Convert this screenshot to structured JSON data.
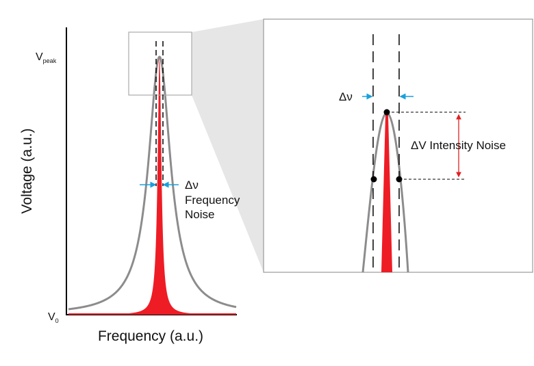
{
  "main_plot": {
    "y_axis_label": "Voltage (a.u.)",
    "x_axis_label": "Frequency (a.u.)",
    "v_peak": {
      "main": "V",
      "sub": "peak"
    },
    "v_zero": {
      "main": "V",
      "sub": "0"
    },
    "frequency_noise": {
      "symbol": "Δν",
      "lines": [
        "Frequency",
        "Noise"
      ]
    }
  },
  "zoom_plot": {
    "delta_nu": "Δν",
    "intensity_noise": "ΔV Intensity Noise"
  }
}
